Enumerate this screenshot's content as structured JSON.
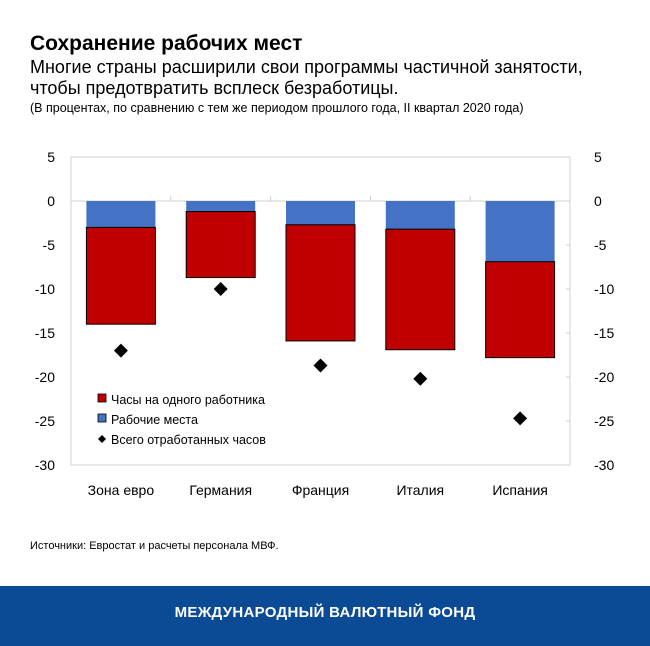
{
  "title": "Сохранение рабочих мест",
  "subtitle": "Многие страны расширили свои программы частичной занятости, чтобы предотвратить всплеск безработицы.",
  "note": "(В процентах, по сравнению с тем же периодом прошлого года, II квартал 2020 года)",
  "source": "Источники: Евростат и расчеты персонала МВФ.",
  "footer": "МЕЖДУНАРОДНЫЙ ВАЛЮТНЫЙ ФОНД",
  "chart_data": {
    "type": "bar",
    "stacked": true,
    "categories": [
      "Зона евро",
      "Германия",
      "Франция",
      "Италия",
      "Испания"
    ],
    "series": [
      {
        "name": "Рабочие места",
        "type": "bar",
        "color": "#4472c4",
        "values": [
          -3.0,
          -1.2,
          -2.7,
          -3.2,
          -6.9
        ]
      },
      {
        "name": "Часы на одного работника",
        "type": "bar",
        "color": "#c00000",
        "values": [
          -11.0,
          -7.5,
          -13.2,
          -13.7,
          -10.9
        ]
      },
      {
        "name": "Всего отработанных часов",
        "type": "scatter",
        "marker": "diamond",
        "color": "#000000",
        "values": [
          -17.0,
          -10.0,
          -18.7,
          -20.2,
          -24.7
        ]
      }
    ],
    "legend_order": [
      "Часы на одного работника",
      "Рабочие места",
      "Всего отработанных часов"
    ],
    "ylim": [
      -30,
      5
    ],
    "yticks": [
      "5",
      "0",
      "-5",
      "-10",
      "-15",
      "-20",
      "-25",
      "-30"
    ],
    "ytick_values": [
      5,
      0,
      -5,
      -10,
      -15,
      -20,
      -25,
      -30
    ],
    "axes": "left and right",
    "grid": false,
    "legend_position": "bottom-left"
  }
}
